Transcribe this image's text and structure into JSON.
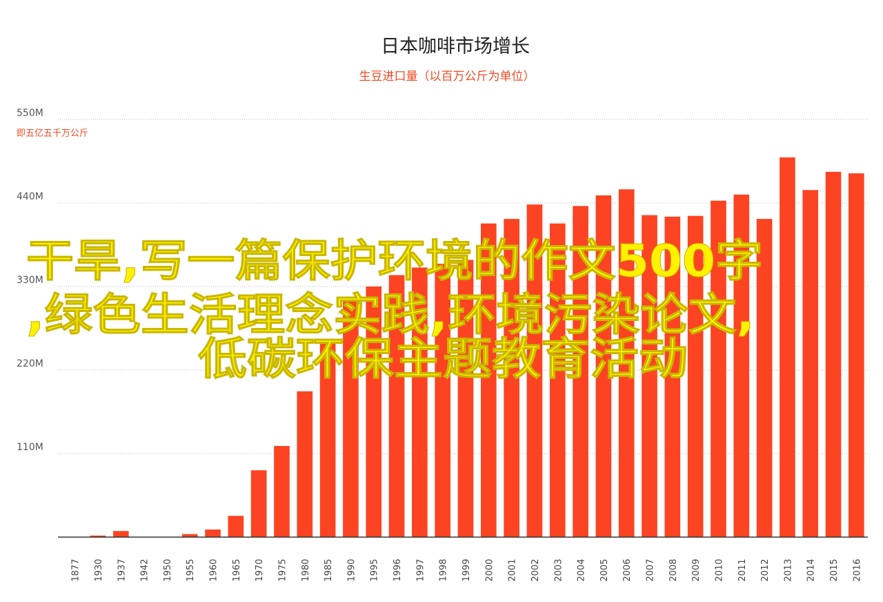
{
  "chart_data": {
    "type": "bar",
    "title": "日本咖啡市场增长",
    "subtitle": "生豆进口量（以百万公斤为单位）",
    "ylabel_note": "即五亿五千万公斤",
    "yticks": [
      {
        "value": 110,
        "label": "110M"
      },
      {
        "value": 220,
        "label": "220M"
      },
      {
        "value": 330,
        "label": "330M"
      },
      {
        "value": 440,
        "label": "440M"
      },
      {
        "value": 550,
        "label": "550M"
      }
    ],
    "ylim": [
      0,
      550
    ],
    "grid": true,
    "categories": [
      "1877",
      "1930",
      "1937",
      "1942",
      "1950",
      "1955",
      "1960",
      "1965",
      "1970",
      "1975",
      "1980",
      "1985",
      "1990",
      "1995",
      "1996",
      "1997",
      "1998",
      "1999",
      "2000",
      "2001",
      "2002",
      "2003",
      "2004",
      "2005",
      "2006",
      "2007",
      "2008",
      "2009",
      "2010",
      "2011",
      "2012",
      "2013",
      "2014",
      "2015",
      "2016"
    ],
    "values": [
      0,
      2,
      8,
      0,
      0,
      4,
      10,
      28,
      88,
      120,
      192,
      255,
      310,
      330,
      345,
      355,
      360,
      365,
      413,
      419,
      438,
      413,
      436,
      450,
      458,
      424,
      422,
      423,
      443,
      451,
      419,
      500,
      457,
      481,
      479
    ]
  },
  "overlay_text": {
    "line1": "干旱,写一篇保护环境的作文500字",
    "line2": ",绿色生活理念实践,环境污染论文,",
    "line3": "低碳环保主题教育活动"
  },
  "colors": {
    "bar": "#fc4422",
    "accent": "#ef4a23",
    "overlay": "#fff200"
  }
}
